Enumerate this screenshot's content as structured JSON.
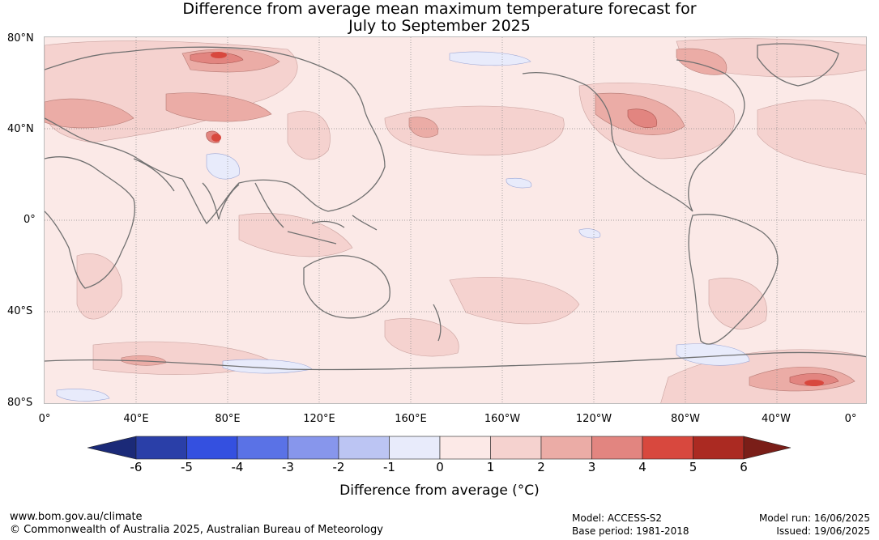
{
  "title_line1": "Difference from average mean maximum temperature forecast for",
  "title_line2": "July to September 2025",
  "map": {
    "lat_labels": [
      "80°N",
      "40°N",
      "0°",
      "40°S",
      "80°S"
    ],
    "lon_labels": [
      "0°",
      "40°E",
      "80°E",
      "120°E",
      "160°E",
      "160°W",
      "120°W",
      "80°W",
      "40°W",
      "0°"
    ]
  },
  "colorbar": {
    "ticks": [
      "-6",
      "-5",
      "-4",
      "-3",
      "-2",
      "-1",
      "0",
      "1",
      "2",
      "3",
      "4",
      "5",
      "6"
    ],
    "colors": [
      "#2a3fa8",
      "#3450e0",
      "#5a72e6",
      "#8796ec",
      "#bcc5f3",
      "#e8ebfb",
      "#fce9e7",
      "#f5d2cf",
      "#ebaca6",
      "#e28580",
      "#d8483e",
      "#ab2a22"
    ],
    "under_color": "#1b2a78",
    "over_color": "#7a1e18",
    "label": "Difference from average (°C)"
  },
  "footer": {
    "url": "www.bom.gov.au/climate",
    "copyright": "© Commonwealth of Australia 2025, Australian Bureau of Meteorology",
    "model": "Model: ACCESS-S2",
    "base_period": "Base period: 1981-2018",
    "model_run": "Model run: 16/06/2025",
    "issued": "Issued: 19/06/2025"
  }
}
